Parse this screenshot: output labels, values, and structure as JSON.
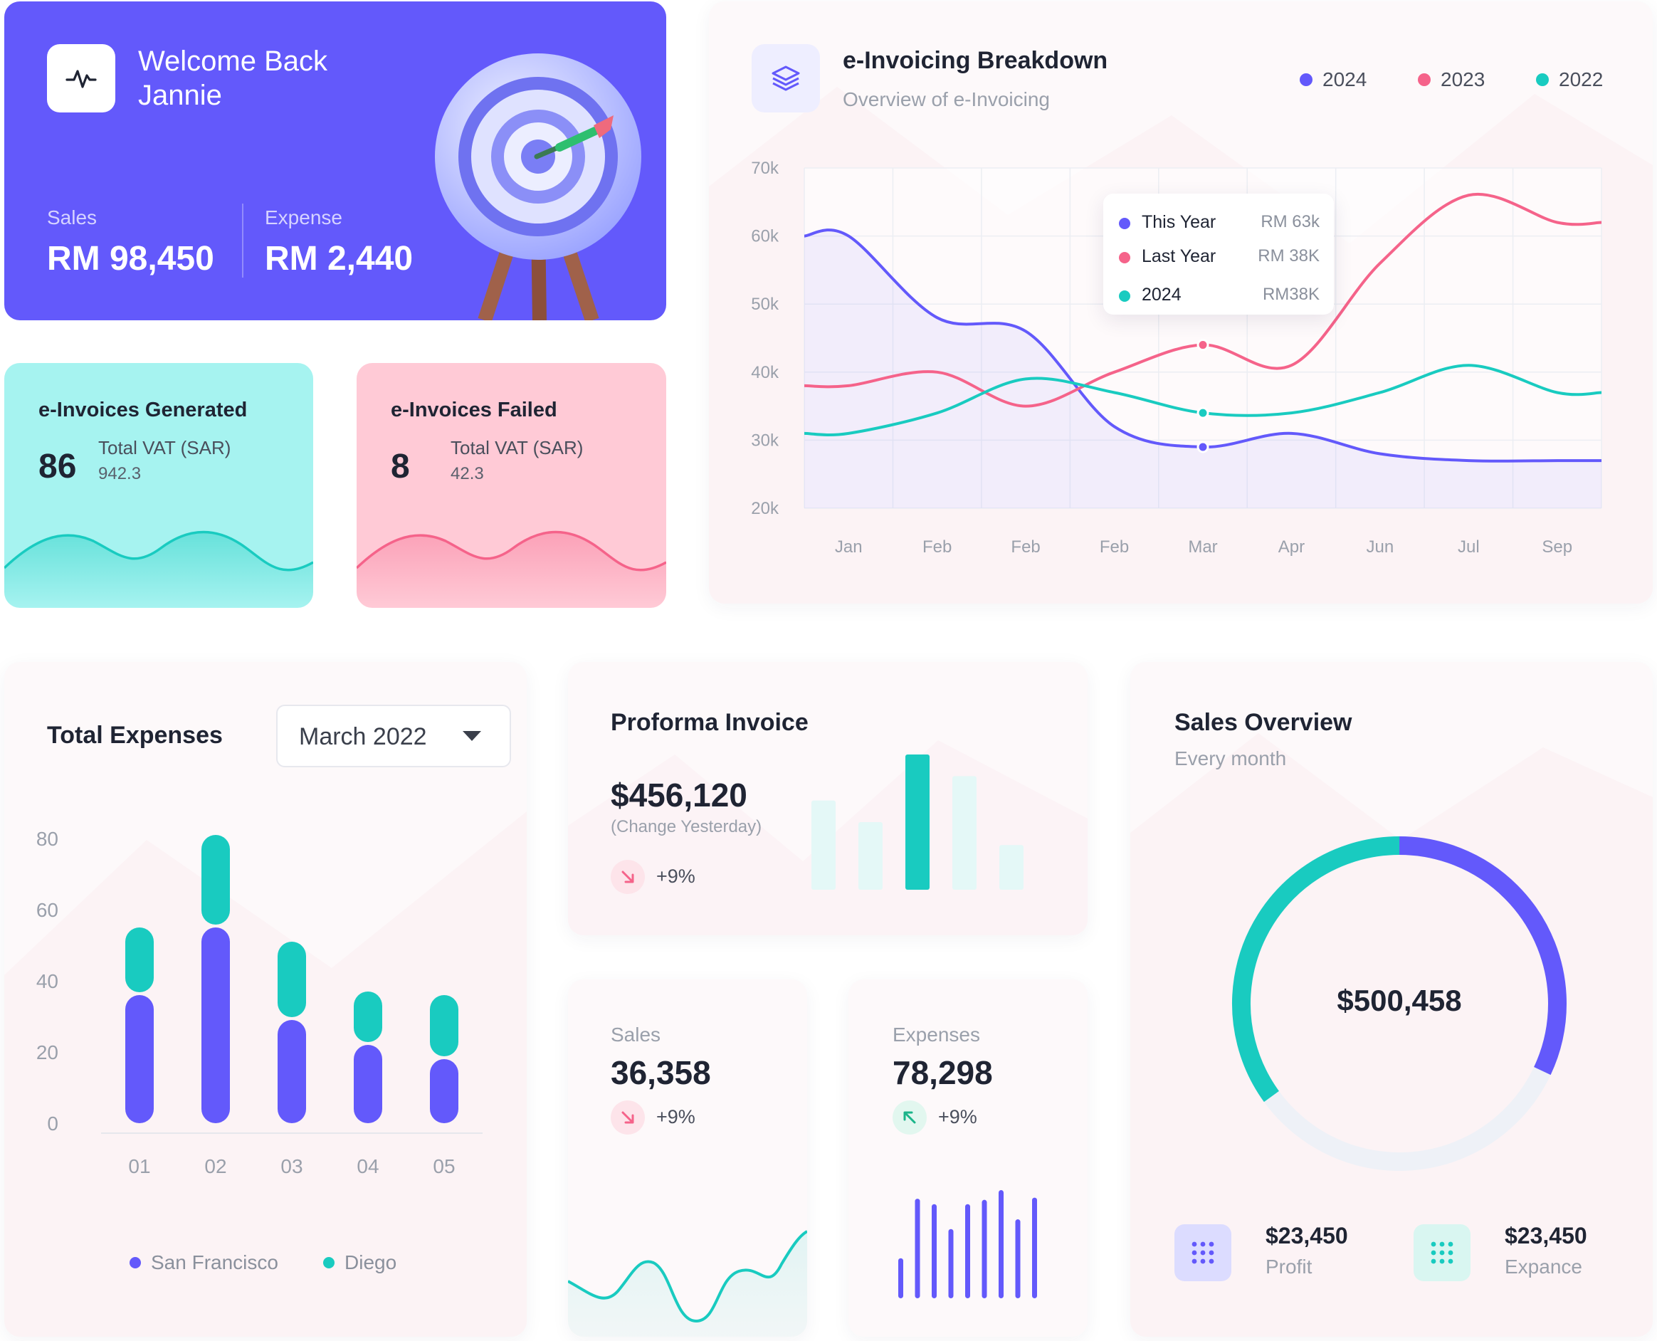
{
  "welcome": {
    "line1": "Welcome Back",
    "line2": "Jannie",
    "sales_label": "Sales",
    "sales_value": "RM 98,450",
    "expense_label": "Expense",
    "expense_value": "RM 2,440",
    "icon": "pulse-icon"
  },
  "generated": {
    "title": "e-Invoices Generated",
    "count": "86",
    "vat_label": "Total VAT (SAR)",
    "vat_value": "942.3"
  },
  "failed": {
    "title": "e-Invoices Failed",
    "count": "8",
    "vat_label": "Total VAT (SAR)",
    "vat_value": "42.3"
  },
  "breakdown": {
    "title": "e-Invoicing Breakdown",
    "subtitle": "Overview of e-Invoicing",
    "icon": "layers-icon",
    "tooltip": [
      {
        "label": "This Year",
        "value": "RM 63k",
        "color": "#6359fb"
      },
      {
        "label": "Last Year",
        "value": "RM 38K",
        "color": "#f5638a"
      },
      {
        "label": "2024",
        "value": "RM38K",
        "color": "#19cbc0"
      }
    ]
  },
  "expenses": {
    "title": "Total Expenses",
    "dropdown_value": "March 2022"
  },
  "proforma": {
    "title": "Proforma Invoice",
    "value": "$456,120",
    "note": "(Change Yesterday)",
    "change": "+9%",
    "bars": [
      0.66,
      0.5,
      1.0,
      0.84,
      0.33
    ]
  },
  "sales_mini": {
    "label": "Sales",
    "value": "36,358",
    "change": "+9%"
  },
  "expenses_mini": {
    "label": "Expenses",
    "value": "78,298",
    "change": "+9%",
    "bars": [
      0.37,
      0.92,
      0.87,
      0.64,
      0.87,
      0.91,
      1.0,
      0.73,
      0.93
    ]
  },
  "sales_overview": {
    "title": "Sales Overview",
    "subtitle": "Every month",
    "total": "$500,458",
    "profit_value": "$23,450",
    "profit_label": "Profit",
    "expance_value": "$23,450",
    "expance_label": "Expance",
    "blue_fraction": 0.32,
    "teal_fraction": 0.35
  },
  "colors": {
    "purple": "#6359fb",
    "pink": "#f5638a",
    "teal": "#19cbc0"
  },
  "chart_data": [
    {
      "type": "line",
      "title": "e-Invoicing Breakdown",
      "categories": [
        "Jan",
        "Feb",
        "Feb",
        "Feb",
        "Mar",
        "Apr",
        "Jun",
        "Jul",
        "Sep"
      ],
      "ylim": [
        20000,
        70000
      ],
      "yticks": [
        "20k",
        "30k",
        "40k",
        "50k",
        "60k",
        "70k"
      ],
      "ytick_values": [
        20000,
        30000,
        40000,
        50000,
        60000,
        70000
      ],
      "legend_position": "top-right",
      "series": [
        {
          "name": "2024",
          "color": "#6359fb",
          "values": [
            60000,
            48000,
            46000,
            32000,
            29000,
            31000,
            28000,
            27000,
            27000
          ]
        },
        {
          "name": "2023",
          "color": "#f5638a",
          "values": [
            38000,
            40000,
            35000,
            40000,
            44000,
            41000,
            56000,
            66000,
            62000
          ]
        },
        {
          "name": "2022",
          "color": "#19cbc0",
          "values": [
            31000,
            34000,
            39000,
            37000,
            34000,
            34000,
            37000,
            41000,
            37000
          ]
        }
      ]
    },
    {
      "type": "bar",
      "title": "Total Expenses",
      "categories": [
        "01",
        "02",
        "03",
        "04",
        "05"
      ],
      "ylim": [
        0,
        80
      ],
      "yticks": [
        "0",
        "20",
        "40",
        "60",
        "80"
      ],
      "ytick_values": [
        0,
        20,
        40,
        60,
        80
      ],
      "stacked": true,
      "legend_position": "bottom",
      "series": [
        {
          "name": "San Francisco",
          "color": "#6359fb",
          "values": [
            36,
            55,
            29,
            22,
            18
          ]
        },
        {
          "name": "Diego",
          "color": "#19cbc0",
          "values": [
            19,
            26,
            22,
            15,
            18
          ]
        }
      ]
    }
  ]
}
